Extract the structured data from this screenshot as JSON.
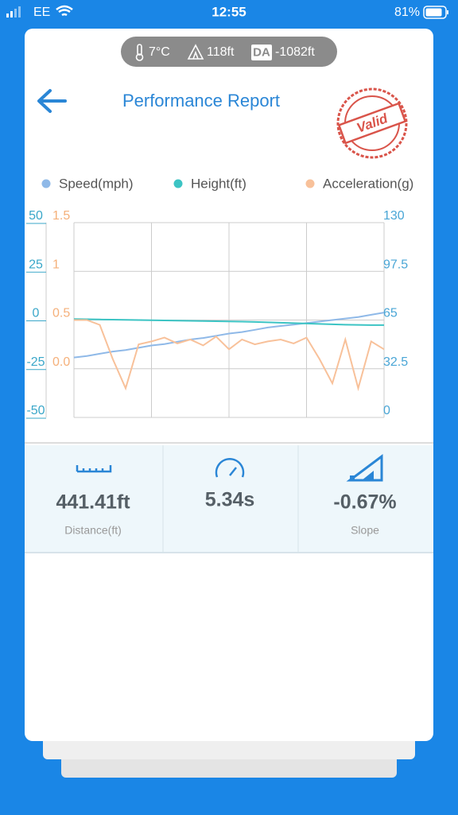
{
  "status_bar": {
    "carrier": "EE",
    "time": "12:55",
    "battery": "81%"
  },
  "conditions": {
    "temperature": "7°C",
    "altitude": "118ft",
    "da_label": "DA",
    "density_altitude": "-1082ft"
  },
  "header": {
    "title": "Performance Report",
    "stamp": "Valid"
  },
  "chart_data": {
    "type": "line",
    "grid": true,
    "axes": {
      "height": {
        "lim": [
          -50,
          50
        ],
        "ticks": [
          50,
          25,
          0,
          -25,
          -50
        ],
        "color": "#3aa7c9"
      },
      "acceleration": {
        "lim": [
          -0.5,
          1.5
        ],
        "ticks": [
          1.5,
          1,
          0.5,
          {
            "value": 0,
            "label": "0.0"
          }
        ],
        "color": "#f5b07a"
      },
      "speed": {
        "lim": [
          0,
          130
        ],
        "ticks": [
          130,
          97.5,
          65,
          32.5,
          0
        ],
        "color": "#4aa6d6"
      }
    },
    "series": [
      {
        "name": "Speed(mph)",
        "axis": "speed",
        "color": "#8fb9e8",
        "values": [
          40,
          41,
          42.5,
          44,
          45,
          46.5,
          48,
          49,
          50.5,
          52,
          53,
          54.5,
          56,
          57,
          58.5,
          60,
          61,
          62,
          63,
          64,
          65,
          66,
          67,
          68.5,
          70
        ]
      },
      {
        "name": "Height(ft)",
        "axis": "height",
        "color": "#3cc4c4",
        "values": [
          0.5,
          0.4,
          0.3,
          0.2,
          0.1,
          0,
          -0.1,
          -0.2,
          -0.3,
          -0.4,
          -0.5,
          -0.6,
          -0.7,
          -0.8,
          -1,
          -1.2,
          -1.4,
          -1.6,
          -1.8,
          -2,
          -2.2,
          -2.4,
          -2.5,
          -2.6,
          -2.6
        ]
      },
      {
        "name": "Acceleration(g)",
        "axis": "acceleration",
        "color": "#f8c19a",
        "values": [
          0.5,
          0.5,
          0.45,
          0.1,
          -0.2,
          0.25,
          0.28,
          0.32,
          0.26,
          0.3,
          0.24,
          0.33,
          0.2,
          0.3,
          0.25,
          0.28,
          0.3,
          0.26,
          0.32,
          0.1,
          -0.15,
          0.3,
          -0.2,
          0.28,
          0.2
        ]
      }
    ]
  },
  "stats": [
    {
      "value": "441.41ft",
      "label": "Distance(ft)"
    },
    {
      "value": "5.34s"
    },
    {
      "value": "-0.67%",
      "label": "Slope"
    }
  ]
}
